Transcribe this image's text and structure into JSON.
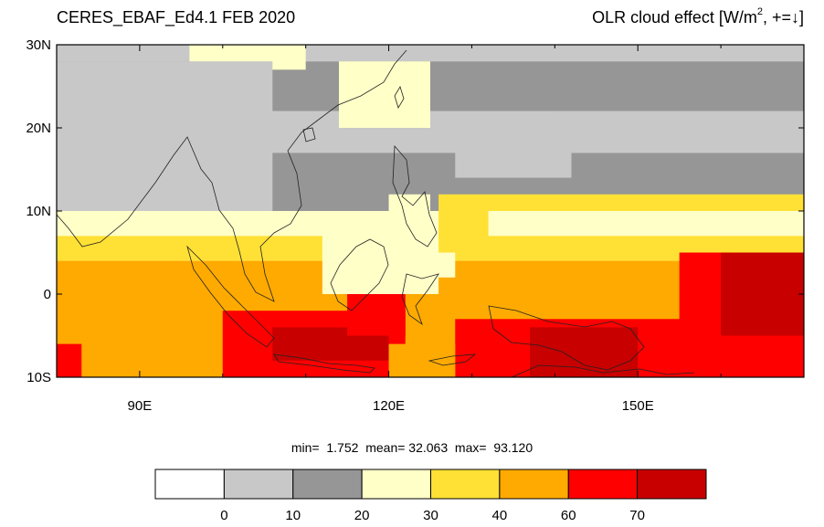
{
  "header": {
    "title_left": "CERES_EBAF_Ed4.1 FEB 2020",
    "title_right_main": "OLR cloud effect [W/m",
    "title_right_sup": "2",
    "title_right_tail": ", +=",
    "title_right_arrow": "↓",
    "title_right_close": "]"
  },
  "map": {
    "lon_range": [
      80,
      170
    ],
    "lat_range": [
      -10,
      30
    ],
    "lat_ticks": [
      "30N",
      "20N",
      "10N",
      "0",
      "10S"
    ],
    "lon_ticks": [
      "90E",
      "120E",
      "150E"
    ]
  },
  "stats": {
    "min_label": "min=",
    "min_value": "1.752",
    "mean_label": "mean=",
    "mean_value": "32.063",
    "max_label": "max=",
    "max_value": "93.120"
  },
  "colorbar": {
    "colors": [
      "#ffffff",
      "#c8c8c8",
      "#969696",
      "#ffffc8",
      "#ffe135",
      "#ffaa00",
      "#ff0000",
      "#c80000"
    ],
    "labels": [
      "0",
      "10",
      "20",
      "30",
      "40",
      "60",
      "70"
    ]
  },
  "bands": [
    {
      "lat_from": 30,
      "lat_to": 28,
      "level": 1
    },
    {
      "lat_from": 28,
      "lat_to": 22,
      "level": 2
    },
    {
      "lat_from": 22,
      "lat_to": 17,
      "level": 1
    },
    {
      "lat_from": 17,
      "lat_to": 10,
      "level": 2
    },
    {
      "lat_from": 10,
      "lat_to": 7,
      "level": 3
    },
    {
      "lat_from": 7,
      "lat_to": 4,
      "level": 4
    },
    {
      "lat_from": 4,
      "lat_to": 0,
      "level": 5
    },
    {
      "lat_from": 0,
      "lat_to": -10,
      "level": 5
    }
  ],
  "patches": [
    {
      "lon": [
        80,
        83
      ],
      "lat": [
        -10,
        -6
      ],
      "level": 6
    },
    {
      "lon": [
        100,
        122
      ],
      "lat": [
        -10,
        -2
      ],
      "level": 6
    },
    {
      "lon": [
        106,
        120
      ],
      "lat": [
        -8,
        -4
      ],
      "level": 7
    },
    {
      "lon": [
        115,
        122
      ],
      "lat": [
        -5,
        0
      ],
      "level": 6
    },
    {
      "lon": [
        128,
        170
      ],
      "lat": [
        -10,
        -3
      ],
      "level": 6
    },
    {
      "lon": [
        137,
        150
      ],
      "lat": [
        -10,
        -4
      ],
      "level": 7
    },
    {
      "lon": [
        155,
        170
      ],
      "lat": [
        -10,
        6
      ],
      "level": 6
    },
    {
      "lon": [
        160,
        170
      ],
      "lat": [
        -5,
        5
      ],
      "level": 7
    },
    {
      "lon": [
        112,
        128
      ],
      "lat": [
        0,
        10
      ],
      "level": 3
    },
    {
      "lon": [
        120,
        125
      ],
      "lat": [
        5,
        12
      ],
      "level": 3
    },
    {
      "lon": [
        126,
        170
      ],
      "lat": [
        5,
        12
      ],
      "level": 4
    },
    {
      "lon": [
        132,
        170
      ],
      "lat": [
        7,
        10
      ],
      "level": 3
    },
    {
      "lon": [
        96,
        110
      ],
      "lat": [
        27,
        30
      ],
      "level": 3
    },
    {
      "lon": [
        114,
        125
      ],
      "lat": [
        20,
        28
      ],
      "level": 3
    },
    {
      "lon": [
        80,
        106
      ],
      "lat": [
        10,
        28
      ],
      "level": 1
    },
    {
      "lon": [
        140,
        170
      ],
      "lat": [
        17,
        22
      ],
      "level": 1
    },
    {
      "lon": [
        128,
        142
      ],
      "lat": [
        14,
        20
      ],
      "level": 1
    },
    {
      "lon": [
        120,
        128
      ],
      "lat": [
        -10,
        -6
      ],
      "level": 5
    },
    {
      "lon": [
        126,
        140
      ],
      "lat": [
        -2,
        2
      ],
      "level": 5
    }
  ]
}
